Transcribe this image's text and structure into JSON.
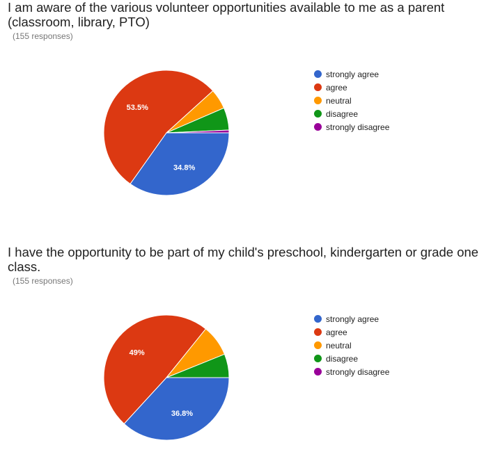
{
  "questions": [
    {
      "title": "I am aware of the various volunteer opportunities available to me as a parent (classroom, library, PTO)",
      "responses": "(155 responses)"
    },
    {
      "title": "I have the opportunity to be part of my child's preschool, kindergarten or grade one class.",
      "responses": "(155 responses)"
    }
  ],
  "chart_data": [
    {
      "type": "pie",
      "title": "I am aware of the various volunteer opportunities available to me as a parent (classroom, library, PTO)",
      "categories": [
        "strongly agree",
        "agree",
        "neutral",
        "disagree",
        "strongly disagree"
      ],
      "values": [
        34.8,
        53.5,
        5.2,
        5.8,
        0.7
      ],
      "data_labels": [
        "34.8%",
        "53.5%",
        "",
        "",
        ""
      ],
      "colors": [
        "#3366cc",
        "#dc3912",
        "#ff9900",
        "#109618",
        "#990099"
      ],
      "legend_position": "right"
    },
    {
      "type": "pie",
      "title": "I have the opportunity to be part of my child's preschool, kindergarten or grade one class.",
      "categories": [
        "strongly agree",
        "agree",
        "neutral",
        "disagree",
        "strongly disagree"
      ],
      "values": [
        36.8,
        49,
        8.1,
        6.1,
        0
      ],
      "data_labels": [
        "36.8%",
        "49%",
        "",
        "",
        ""
      ],
      "colors": [
        "#3366cc",
        "#dc3912",
        "#ff9900",
        "#109618",
        "#990099"
      ],
      "legend_position": "right"
    }
  ]
}
